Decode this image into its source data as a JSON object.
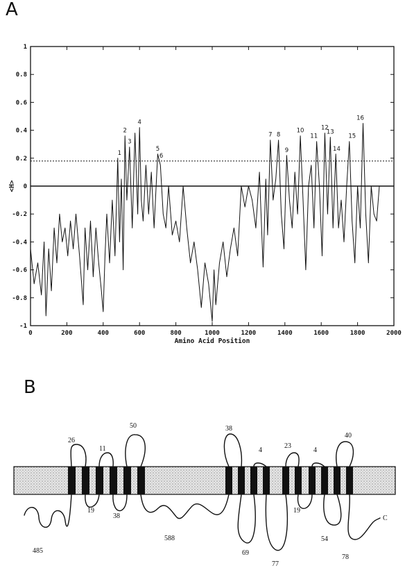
{
  "panels": {
    "a": "A",
    "b": "B"
  },
  "chart_data": {
    "type": "line",
    "xlabel": "Amino Acid Position",
    "ylabel": "<H>",
    "xlim": [
      0,
      2000
    ],
    "ylim": [
      -1,
      1
    ],
    "x_ticks": [
      0,
      200,
      400,
      600,
      800,
      1000,
      1200,
      1400,
      1600,
      1800,
      2000
    ],
    "y_ticks": [
      -1,
      -0.8,
      -0.6,
      -0.4,
      -0.2,
      0,
      0.2,
      0.4,
      0.6,
      0.8,
      1
    ],
    "threshold": 0.18,
    "zero_line": 0,
    "series": [
      {
        "x": [
          0,
          20,
          40,
          60,
          75,
          85,
          100,
          115,
          130,
          145,
          160,
          175,
          190,
          205,
          220,
          235,
          250,
          270,
          290,
          300,
          315,
          330,
          345,
          360,
          375,
          390,
          400,
          410,
          420,
          435,
          450,
          465,
          480,
          490,
          500,
          510,
          520,
          530,
          545,
          560,
          575,
          590,
          600,
          610,
          620,
          635,
          650,
          665,
          680,
          700,
          715,
          730,
          745,
          760,
          780,
          800,
          820,
          840,
          860,
          880,
          900,
          920,
          940,
          960,
          980,
          1000,
          1010,
          1020,
          1040,
          1060,
          1080,
          1100,
          1120,
          1140,
          1160,
          1180,
          1200,
          1220,
          1240,
          1260,
          1280,
          1295,
          1305,
          1320,
          1335,
          1350,
          1365,
          1380,
          1395,
          1410,
          1425,
          1440,
          1455,
          1470,
          1485,
          1500,
          1515,
          1530,
          1545,
          1560,
          1575,
          1590,
          1605,
          1620,
          1635,
          1650,
          1665,
          1680,
          1695,
          1710,
          1725,
          1740,
          1755,
          1770,
          1785,
          1800,
          1815,
          1830,
          1845,
          1860,
          1875,
          1890,
          1905,
          1920
        ],
        "y": [
          -0.45,
          -0.7,
          -0.55,
          -0.78,
          -0.4,
          -0.93,
          -0.45,
          -0.75,
          -0.3,
          -0.55,
          -0.2,
          -0.4,
          -0.3,
          -0.5,
          -0.25,
          -0.45,
          -0.2,
          -0.5,
          -0.85,
          -0.3,
          -0.6,
          -0.25,
          -0.65,
          -0.3,
          -0.55,
          -0.75,
          -0.9,
          -0.5,
          -0.2,
          -0.55,
          -0.1,
          -0.5,
          0.2,
          -0.4,
          0.05,
          -0.6,
          0.36,
          -0.1,
          0.28,
          -0.3,
          0.38,
          -0.2,
          0.42,
          -0.1,
          -0.25,
          0.15,
          -0.2,
          0.1,
          -0.3,
          0.23,
          0.15,
          -0.2,
          -0.3,
          0.0,
          -0.35,
          -0.25,
          -0.4,
          0.0,
          -0.3,
          -0.55,
          -0.4,
          -0.6,
          -0.87,
          -0.55,
          -0.7,
          -0.97,
          -0.6,
          -0.85,
          -0.55,
          -0.4,
          -0.65,
          -0.45,
          -0.3,
          -0.5,
          0.0,
          -0.15,
          0.0,
          -0.1,
          -0.3,
          0.1,
          -0.58,
          0.05,
          -0.35,
          0.33,
          -0.1,
          0.05,
          0.33,
          -0.2,
          -0.45,
          0.22,
          -0.1,
          -0.3,
          0.1,
          -0.2,
          0.36,
          -0.1,
          -0.6,
          0.0,
          0.15,
          -0.3,
          0.32,
          0.0,
          -0.5,
          0.38,
          -0.2,
          0.35,
          -0.3,
          0.23,
          -0.3,
          -0.1,
          -0.4,
          0.0,
          0.32,
          -0.25,
          -0.55,
          0.0,
          -0.3,
          0.45,
          -0.2,
          -0.55,
          0.0,
          -0.2,
          -0.25,
          0.0
        ]
      }
    ],
    "peak_labels": [
      {
        "label": "1",
        "x": 490,
        "y": 0.2
      },
      {
        "label": "2",
        "x": 520,
        "y": 0.36
      },
      {
        "label": "3",
        "x": 545,
        "y": 0.28
      },
      {
        "label": "4",
        "x": 600,
        "y": 0.42
      },
      {
        "label": "5",
        "x": 700,
        "y": 0.23
      },
      {
        "label": "6",
        "x": 720,
        "y": 0.18
      },
      {
        "label": "7",
        "x": 1320,
        "y": 0.33
      },
      {
        "label": "8",
        "x": 1365,
        "y": 0.33
      },
      {
        "label": "9",
        "x": 1410,
        "y": 0.22
      },
      {
        "label": "10",
        "x": 1485,
        "y": 0.36
      },
      {
        "label": "11",
        "x": 1560,
        "y": 0.32
      },
      {
        "label": "12",
        "x": 1620,
        "y": 0.38
      },
      {
        "label": "13",
        "x": 1650,
        "y": 0.35
      },
      {
        "label": "14",
        "x": 1685,
        "y": 0.23
      },
      {
        "label": "15",
        "x": 1770,
        "y": 0.32
      },
      {
        "label": "16",
        "x": 1815,
        "y": 0.45
      }
    ]
  },
  "topology": {
    "loop_labels_above": [
      "26",
      "11",
      "50",
      "38",
      "4",
      "23",
      "4",
      "40"
    ],
    "loop_labels_below": [
      "19",
      "38",
      "588",
      "485",
      "69",
      "77",
      "19",
      "54",
      "78"
    ],
    "c_terminus": "C"
  }
}
